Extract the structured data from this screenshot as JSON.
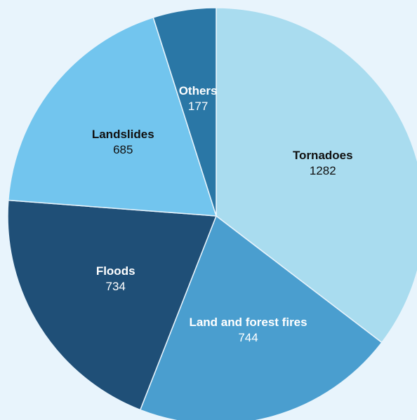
{
  "chart_data": {
    "type": "pie",
    "categories": [
      "Tornadoes",
      "Land and forest fires",
      "Floods",
      "Landslides",
      "Others"
    ],
    "values": [
      1282,
      744,
      734,
      685,
      177
    ],
    "colors": [
      "#a9dcef",
      "#4a9ecf",
      "#1f4f77",
      "#72c5ee",
      "#2a77a6"
    ]
  }
}
